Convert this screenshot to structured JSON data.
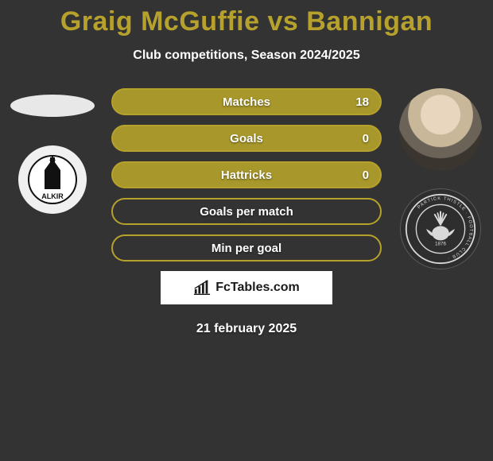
{
  "title_text": "Graig McGuffie vs Bannigan",
  "title_color": "#b7a12d",
  "subtitle_text": "Club competitions, Season 2024/2025",
  "date_text": "21 february 2025",
  "brand_text": "FcTables.com",
  "pill_border_color": "#b7a12d",
  "pill_fill_color": "#a8972b",
  "pill_empty_color": "#333333",
  "stats": [
    {
      "label": "Matches",
      "value": "18",
      "filled": true
    },
    {
      "label": "Goals",
      "value": "0",
      "filled": true
    },
    {
      "label": "Hattricks",
      "value": "0",
      "filled": true
    },
    {
      "label": "Goals per match",
      "value": "",
      "filled": false
    },
    {
      "label": "Min per goal",
      "value": "",
      "filled": false
    }
  ],
  "left_club_name": "FALKIRK",
  "left_club_name_partial": "ALKIR",
  "right_club_founded": "1876",
  "right_club_ring_text": "PARTICK THISTLE · FOOTBALL CLUB ·"
}
